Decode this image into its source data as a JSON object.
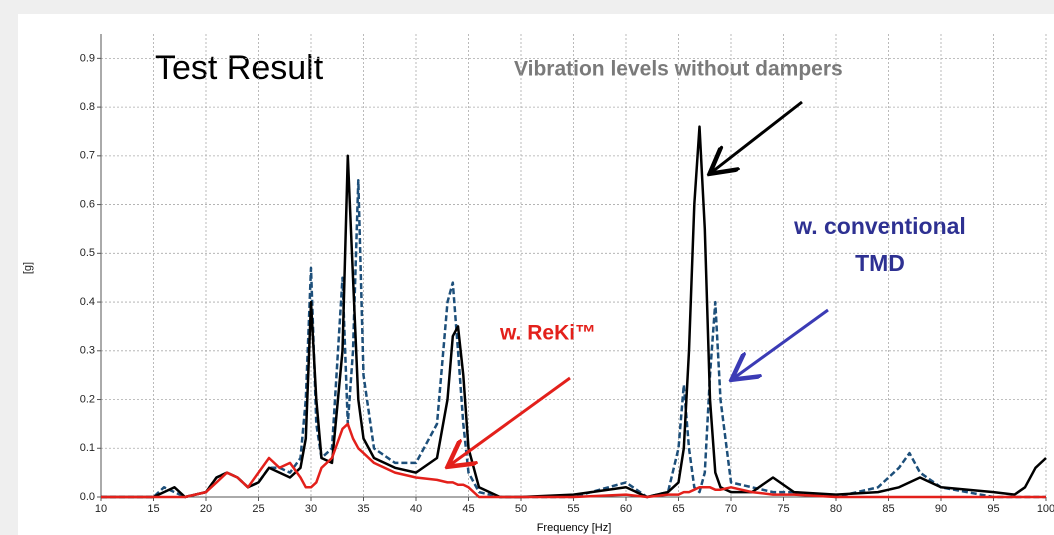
{
  "chart_data": {
    "type": "line",
    "x_label": "Frequency [Hz]",
    "y_label": "[g]",
    "xlim": [
      10,
      100
    ],
    "ylim": [
      0,
      0.95
    ],
    "xticks": [
      10,
      15,
      20,
      25,
      30,
      35,
      40,
      45,
      50,
      55,
      60,
      65,
      70,
      75,
      80,
      85,
      90,
      95,
      100
    ],
    "yticks": [
      {
        "value": 0,
        "label": "0.0"
      },
      0.1,
      0.2,
      0.3,
      0.4,
      0.5,
      0.6,
      0.7,
      0.8,
      0.9
    ],
    "grid": true,
    "x": [
      10,
      15,
      16,
      17,
      18,
      20,
      21,
      22,
      23,
      24,
      25,
      26,
      27,
      28,
      29,
      29.5,
      30,
      30.5,
      31,
      32,
      33,
      33.5,
      34,
      34.5,
      35,
      36,
      38,
      40,
      42,
      43,
      43.5,
      44,
      44.5,
      45,
      46,
      48,
      50,
      55,
      60,
      62,
      64,
      65,
      65.5,
      66,
      66.5,
      67,
      67.5,
      68,
      68.5,
      69,
      70,
      72,
      74,
      76,
      80,
      84,
      86,
      87,
      88,
      90,
      95,
      97,
      98,
      99,
      100
    ],
    "series": [
      {
        "name": "w. conventional TMD",
        "color": "#1d4f7a",
        "style": "dashed",
        "values": [
          0,
          0,
          0.02,
          0.01,
          0,
          0.01,
          0.04,
          0.05,
          0.04,
          0.02,
          0.03,
          0.06,
          0.06,
          0.05,
          0.08,
          0.2,
          0.47,
          0.15,
          0.08,
          0.1,
          0.45,
          0.15,
          0.3,
          0.65,
          0.25,
          0.1,
          0.07,
          0.07,
          0.15,
          0.4,
          0.44,
          0.3,
          0.15,
          0.05,
          0.01,
          0,
          0,
          0,
          0.03,
          0,
          0.01,
          0.1,
          0.23,
          0.1,
          0.02,
          0.01,
          0.05,
          0.25,
          0.4,
          0.2,
          0.03,
          0.02,
          0.01,
          0.01,
          0,
          0.02,
          0.06,
          0.09,
          0.05,
          0.02,
          0,
          0,
          0,
          0,
          0
        ]
      },
      {
        "name": "Vibration levels without dampers",
        "color": "#000000",
        "style": "solid",
        "values": [
          0,
          0,
          0.01,
          0.02,
          0,
          0.01,
          0.04,
          0.05,
          0.04,
          0.02,
          0.03,
          0.06,
          0.05,
          0.04,
          0.06,
          0.12,
          0.4,
          0.2,
          0.08,
          0.07,
          0.3,
          0.7,
          0.45,
          0.2,
          0.12,
          0.08,
          0.06,
          0.05,
          0.08,
          0.2,
          0.33,
          0.35,
          0.25,
          0.1,
          0.02,
          0,
          0,
          0.005,
          0.02,
          0,
          0.01,
          0.03,
          0.1,
          0.3,
          0.6,
          0.76,
          0.55,
          0.2,
          0.05,
          0.02,
          0.01,
          0.01,
          0.04,
          0.01,
          0.005,
          0.01,
          0.02,
          0.03,
          0.04,
          0.02,
          0.01,
          0.005,
          0.02,
          0.06,
          0.08
        ]
      },
      {
        "name": "w. ReKi™",
        "color": "#e3201b",
        "style": "solid",
        "values": [
          0,
          0,
          0,
          0,
          0,
          0.01,
          0.03,
          0.05,
          0.04,
          0.02,
          0.05,
          0.08,
          0.06,
          0.07,
          0.04,
          0.02,
          0.02,
          0.03,
          0.06,
          0.08,
          0.14,
          0.15,
          0.12,
          0.1,
          0.09,
          0.07,
          0.05,
          0.04,
          0.035,
          0.03,
          0.03,
          0.025,
          0.025,
          0.02,
          0,
          0,
          0,
          0,
          0.005,
          0,
          0.005,
          0.005,
          0.01,
          0.01,
          0.015,
          0.02,
          0.02,
          0.02,
          0.015,
          0.015,
          0.02,
          0.01,
          0.005,
          0.005,
          0,
          0,
          0,
          0,
          0,
          0,
          0,
          0,
          0,
          0,
          0
        ]
      }
    ],
    "annotations": [
      {
        "text": "Test Result",
        "color": "#000000"
      },
      {
        "text": "Vibration levels without dampers",
        "color": "#7a7a7a"
      },
      {
        "text": "w. conventional",
        "color": "#2e3192"
      },
      {
        "text": "TMD",
        "color": "#2e3192"
      },
      {
        "text": "w. ReKi™",
        "color": "#e3201b"
      }
    ]
  }
}
